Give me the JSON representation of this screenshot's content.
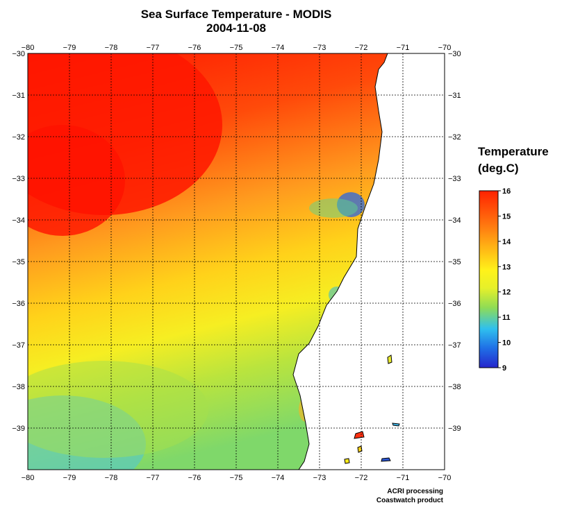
{
  "title": "Sea Surface Temperature - MODIS",
  "date": "2004-11-08",
  "legend": {
    "title_line1": "Temperature",
    "title_line2": "(deg.C)",
    "ticks": [
      "16",
      "15",
      "14",
      "13",
      "12",
      "11",
      "10",
      "9"
    ],
    "min": 9,
    "max": 16
  },
  "map": {
    "lon_ticks": [
      "-80",
      "-79",
      "-78",
      "-77",
      "-76",
      "-75",
      "-74",
      "-73",
      "-72",
      "-71",
      "-70"
    ],
    "lat_ticks": [
      "-30",
      "-31",
      "-32",
      "-33",
      "-34",
      "-35",
      "-36",
      "-37",
      "-38",
      "-39"
    ],
    "lon_range": [
      -80,
      -70
    ],
    "lat_range": [
      -40,
      -30
    ],
    "colors": {
      "warm": "#ff1a00",
      "orange": "#ff8a1a",
      "yellow": "#ffe81a",
      "green": "#8fdc55",
      "cyan": "#33c0e8",
      "blue": "#2a2ad8",
      "land": "#ffffff",
      "coast": "#000000"
    }
  },
  "credit": {
    "line1": "ACRI processing",
    "line2": "Coastwatch product"
  }
}
